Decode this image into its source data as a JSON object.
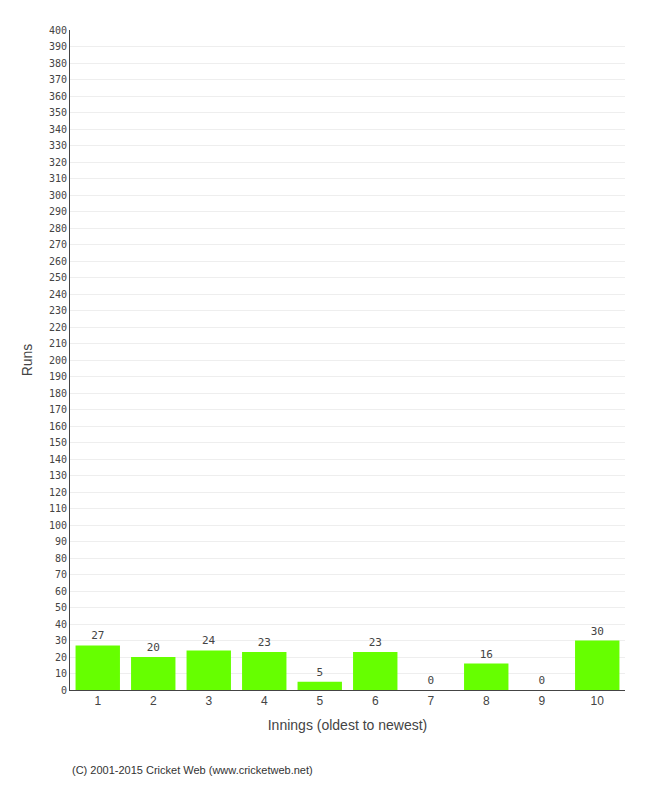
{
  "chart_data": {
    "type": "bar",
    "categories": [
      "1",
      "2",
      "3",
      "4",
      "5",
      "6",
      "7",
      "8",
      "9",
      "10"
    ],
    "values": [
      27,
      20,
      24,
      23,
      5,
      23,
      0,
      16,
      0,
      30
    ],
    "color": "#66ff00",
    "xlabel": "Innings (oldest to newest)",
    "ylabel": "Runs",
    "ylim": [
      0,
      400
    ],
    "yticks": [
      0,
      10,
      20,
      30,
      40,
      50,
      60,
      70,
      80,
      90,
      100,
      110,
      120,
      130,
      140,
      150,
      160,
      170,
      180,
      190,
      200,
      210,
      220,
      230,
      240,
      250,
      260,
      270,
      280,
      290,
      300,
      310,
      320,
      330,
      340,
      350,
      360,
      370,
      380,
      390,
      400
    ],
    "grid": true,
    "data_labels": true,
    "annotations": [
      "(C) 2001-2015 Cricket Web (www.cricketweb.net)"
    ]
  }
}
